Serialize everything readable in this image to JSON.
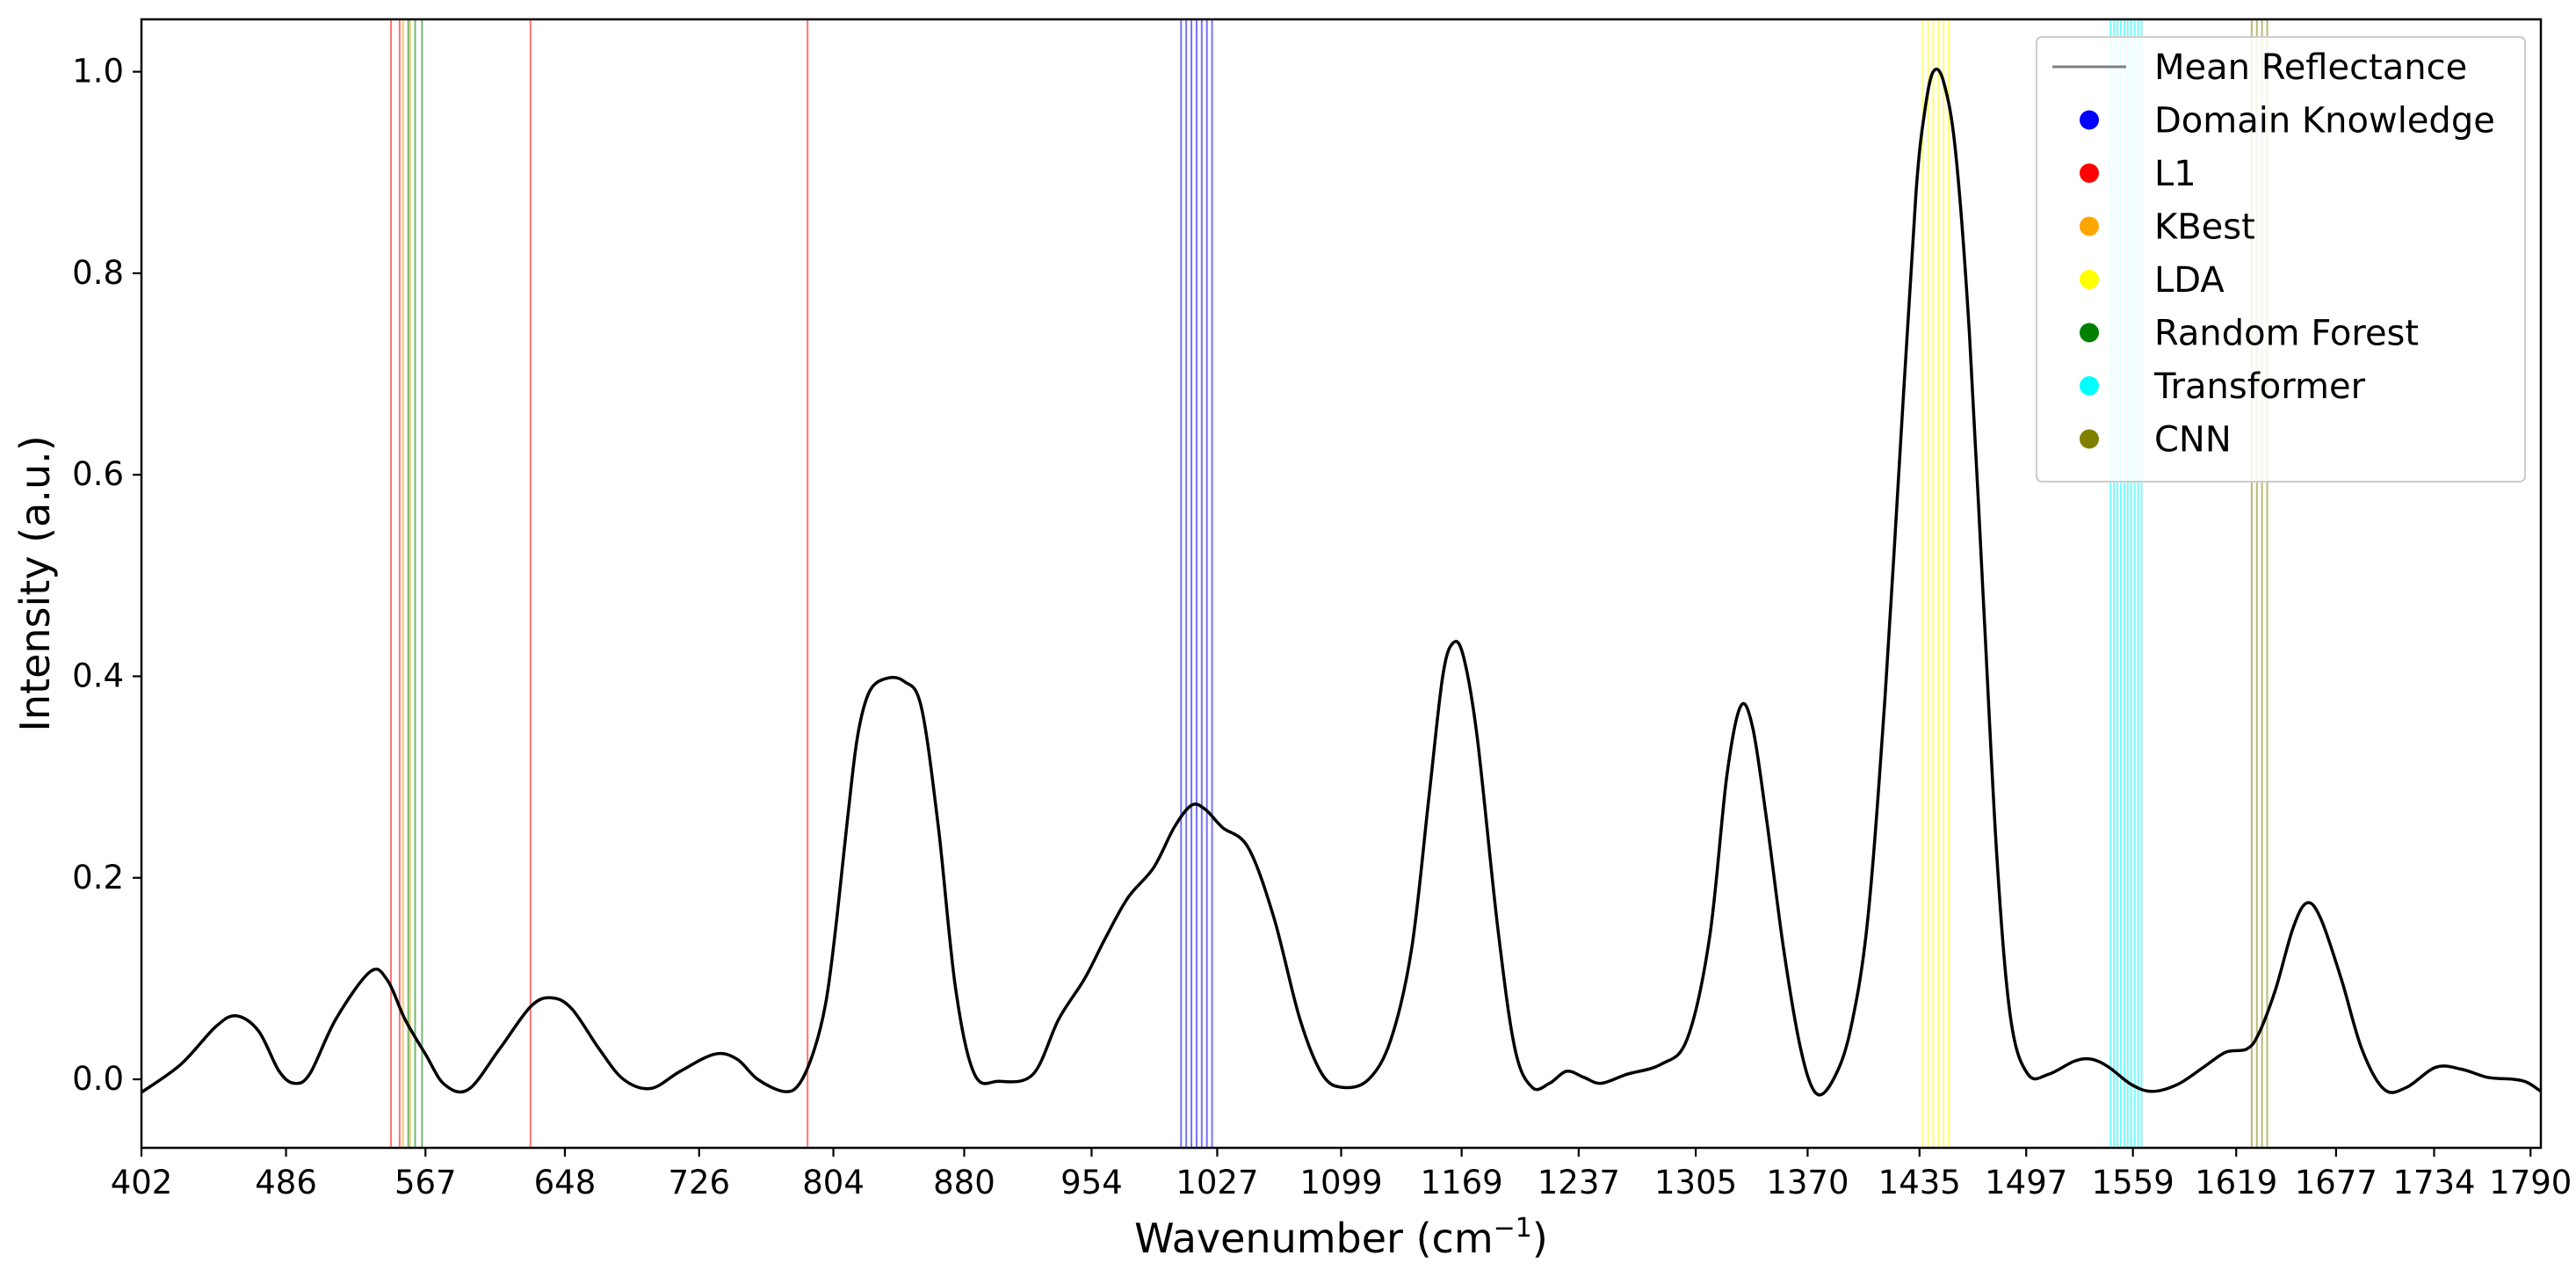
{
  "chart_data": {
    "type": "line",
    "title": "",
    "xlabel": "Wavenumber (cm",
    "xlabel_sup": "−1",
    "xlabel_close": ")",
    "ylabel": "Intensity (a.u.)",
    "xlim": [
      402,
      1796
    ],
    "ylim": [
      -0.068,
      1.052
    ],
    "x_ticks": [
      402,
      486,
      567,
      648,
      726,
      804,
      880,
      954,
      1027,
      1099,
      1169,
      1237,
      1305,
      1370,
      1435,
      1497,
      1559,
      1619,
      1677,
      1734,
      1790
    ],
    "y_ticks": [
      0.0,
      0.2,
      0.4,
      0.6,
      0.8,
      1.0
    ],
    "y_tick_labels": [
      "0.0",
      "0.2",
      "0.4",
      "0.6",
      "0.8",
      "1.0"
    ],
    "grid": false,
    "legend_position": "top-right",
    "legend": [
      {
        "label": "Mean Reflectance",
        "marker": "line",
        "color": "#7f7f7f"
      },
      {
        "label": "Domain Knowledge",
        "marker": "dot",
        "color": "#0000ff"
      },
      {
        "label": "L1",
        "marker": "dot",
        "color": "#ff0000"
      },
      {
        "label": "KBest",
        "marker": "dot",
        "color": "#ffa500"
      },
      {
        "label": "LDA",
        "marker": "dot",
        "color": "#ffff00"
      },
      {
        "label": "Random Forest",
        "marker": "dot",
        "color": "#008000"
      },
      {
        "label": "Transformer",
        "marker": "dot",
        "color": "#00ffff"
      },
      {
        "label": "CNN",
        "marker": "dot",
        "color": "#808000"
      }
    ],
    "series": [
      {
        "name": "Mean Reflectance",
        "color": "#000000",
        "points": [
          [
            402,
            -0.013
          ],
          [
            425,
            0.015
          ],
          [
            445,
            0.052
          ],
          [
            457,
            0.063
          ],
          [
            470,
            0.048
          ],
          [
            482,
            0.008
          ],
          [
            491,
            -0.004
          ],
          [
            500,
            0.006
          ],
          [
            515,
            0.06
          ],
          [
            535,
            0.107
          ],
          [
            545,
            0.098
          ],
          [
            555,
            0.06
          ],
          [
            567,
            0.025
          ],
          [
            578,
            -0.005
          ],
          [
            592,
            -0.01
          ],
          [
            610,
            0.03
          ],
          [
            628,
            0.072
          ],
          [
            640,
            0.081
          ],
          [
            652,
            0.07
          ],
          [
            668,
            0.03
          ],
          [
            682,
            0.0
          ],
          [
            698,
            -0.009
          ],
          [
            715,
            0.008
          ],
          [
            735,
            0.025
          ],
          [
            748,
            0.02
          ],
          [
            760,
            0.0
          ],
          [
            775,
            -0.012
          ],
          [
            784,
            -0.005
          ],
          [
            793,
            0.03
          ],
          [
            800,
            0.08
          ],
          [
            806,
            0.16
          ],
          [
            812,
            0.255
          ],
          [
            818,
            0.34
          ],
          [
            825,
            0.385
          ],
          [
            835,
            0.398
          ],
          [
            845,
            0.395
          ],
          [
            855,
            0.37
          ],
          [
            865,
            0.25
          ],
          [
            875,
            0.09
          ],
          [
            886,
            0.005
          ],
          [
            900,
            -0.002
          ],
          [
            920,
            0.005
          ],
          [
            935,
            0.06
          ],
          [
            950,
            0.1
          ],
          [
            962,
            0.14
          ],
          [
            975,
            0.18
          ],
          [
            990,
            0.21
          ],
          [
            1002,
            0.25
          ],
          [
            1012,
            0.272
          ],
          [
            1020,
            0.268
          ],
          [
            1030,
            0.25
          ],
          [
            1045,
            0.23
          ],
          [
            1060,
            0.16
          ],
          [
            1075,
            0.06
          ],
          [
            1088,
            0.005
          ],
          [
            1100,
            -0.008
          ],
          [
            1115,
            0.0
          ],
          [
            1128,
            0.04
          ],
          [
            1140,
            0.13
          ],
          [
            1150,
            0.28
          ],
          [
            1158,
            0.4
          ],
          [
            1164,
            0.433
          ],
          [
            1170,
            0.42
          ],
          [
            1178,
            0.34
          ],
          [
            1190,
            0.15
          ],
          [
            1200,
            0.03
          ],
          [
            1210,
            -0.008
          ],
          [
            1220,
            -0.004
          ],
          [
            1230,
            0.008
          ],
          [
            1240,
            0.002
          ],
          [
            1250,
            -0.004
          ],
          [
            1265,
            0.005
          ],
          [
            1285,
            0.015
          ],
          [
            1300,
            0.04
          ],
          [
            1313,
            0.14
          ],
          [
            1323,
            0.3
          ],
          [
            1331,
            0.37
          ],
          [
            1338,
            0.35
          ],
          [
            1346,
            0.26
          ],
          [
            1356,
            0.13
          ],
          [
            1366,
            0.03
          ],
          [
            1375,
            -0.014
          ],
          [
            1385,
            0.0
          ],
          [
            1395,
            0.05
          ],
          [
            1405,
            0.16
          ],
          [
            1415,
            0.38
          ],
          [
            1425,
            0.66
          ],
          [
            1433,
            0.88
          ],
          [
            1438,
            0.96
          ],
          [
            1443,
            1.0
          ],
          [
            1449,
            0.99
          ],
          [
            1456,
            0.92
          ],
          [
            1464,
            0.74
          ],
          [
            1472,
            0.48
          ],
          [
            1480,
            0.22
          ],
          [
            1488,
            0.06
          ],
          [
            1498,
            0.005
          ],
          [
            1510,
            0.005
          ],
          [
            1525,
            0.018
          ],
          [
            1535,
            0.02
          ],
          [
            1545,
            0.012
          ],
          [
            1558,
            -0.005
          ],
          [
            1570,
            -0.012
          ],
          [
            1585,
            -0.005
          ],
          [
            1600,
            0.012
          ],
          [
            1613,
            0.027
          ],
          [
            1625,
            0.03
          ],
          [
            1632,
            0.045
          ],
          [
            1642,
            0.09
          ],
          [
            1652,
            0.15
          ],
          [
            1660,
            0.175
          ],
          [
            1668,
            0.16
          ],
          [
            1680,
            0.1
          ],
          [
            1692,
            0.03
          ],
          [
            1705,
            -0.01
          ],
          [
            1718,
            -0.008
          ],
          [
            1735,
            0.012
          ],
          [
            1750,
            0.01
          ],
          [
            1765,
            0.002
          ],
          [
            1780,
            0.0
          ],
          [
            1788,
            -0.003
          ],
          [
            1796,
            -0.012
          ]
        ]
      }
    ],
    "feature_lines": [
      {
        "method": "Domain Knowledge",
        "color": "#0000ff",
        "x": [
          1006,
          1009,
          1012,
          1015,
          1018,
          1021,
          1024
        ]
      },
      {
        "method": "L1",
        "color": "#ff0000",
        "x": [
          547,
          552,
          628,
          789
        ]
      },
      {
        "method": "KBest",
        "color": "#ffa500",
        "x": [
          554,
          558
        ]
      },
      {
        "method": "LDA",
        "color": "#ffff00",
        "x": [
          1437,
          1440,
          1443,
          1446,
          1449,
          1452
        ]
      },
      {
        "method": "Random Forest",
        "color": "#008000",
        "x": [
          557,
          561,
          565
        ]
      },
      {
        "method": "Transformer",
        "color": "#00ffff",
        "x": [
          1546,
          1548,
          1550,
          1552,
          1554,
          1556,
          1558,
          1560,
          1562,
          1564
        ]
      },
      {
        "method": "CNN",
        "color": "#808000",
        "x": [
          1628,
          1631,
          1634,
          1637
        ]
      }
    ]
  }
}
